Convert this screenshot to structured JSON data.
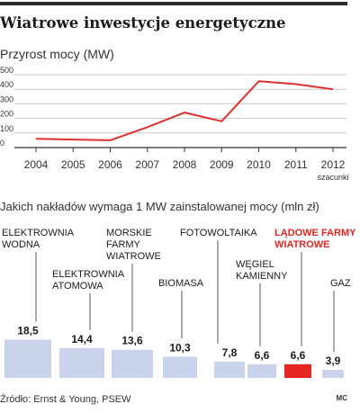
{
  "title": "Wiatrowe inwestycje energetyczne",
  "chart_data": [
    {
      "type": "line",
      "title": "Przyrost mocy (MW)",
      "x": [
        "2004",
        "2005",
        "2006",
        "2007",
        "2008",
        "2009",
        "2010",
        "2011",
        "2012"
      ],
      "x_note": "szacunki",
      "series": [
        {
          "values": [
            60,
            55,
            50,
            140,
            240,
            180,
            455,
            435,
            400
          ]
        }
      ],
      "yticks": [
        0,
        100,
        200,
        300,
        400,
        500
      ],
      "ylim": [
        0,
        500
      ],
      "grid": true,
      "colors": {
        "line": "#e03030",
        "grid": "#c8c8c8"
      }
    },
    {
      "type": "bar",
      "title": "Jakich nakładów wymaga 1 MW zainstalowanej mocy (mln zł)",
      "categories": [
        [
          "ELEKTROWNIA",
          "WODNA"
        ],
        [
          "ELEKTROWNIA",
          "ATOMOWA"
        ],
        [
          "MORSKIE",
          "FARMY",
          "WIATROWE"
        ],
        [
          "BIOMASA"
        ],
        [
          "FOTOWOLTAIKA"
        ],
        [
          "WĘGIEL",
          "KAMIENNY"
        ],
        [
          "LĄDOWE FARMY",
          "WIATROWE"
        ],
        [
          "GAZ"
        ]
      ],
      "values": [
        18.5,
        14.4,
        13.6,
        10.3,
        7.8,
        6.6,
        6.6,
        3.9
      ],
      "value_labels": [
        "18,5",
        "14,4",
        "13,6",
        "10,3",
        "7,8",
        "6,6",
        "6,6",
        "3,9"
      ],
      "highlight_index": 6,
      "colors": {
        "bar": "#c9d4ec",
        "highlight": "#e52521",
        "highlight_text": "#e52521"
      }
    }
  ],
  "source": "Źródło: Ernst & Young, PSEW",
  "credit": "MC"
}
